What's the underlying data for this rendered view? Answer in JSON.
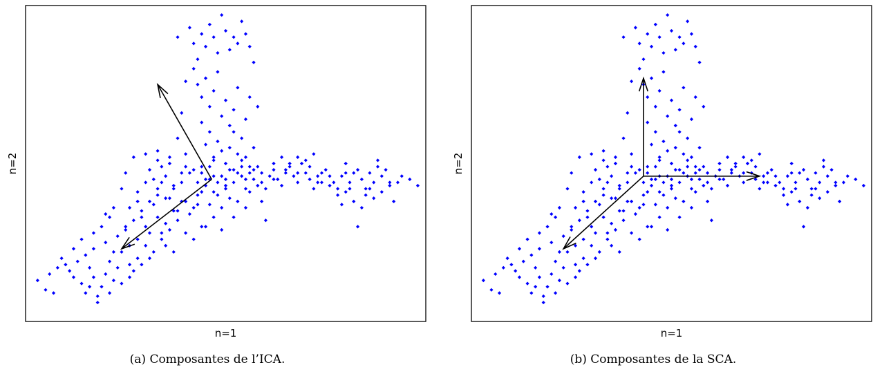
{
  "chart_data": [
    {
      "type": "scatter",
      "title": "",
      "xlabel": "n=1",
      "ylabel": "n=2",
      "caption": "(a)  Composantes de l’ICA.",
      "point_color": "#0000ff",
      "arrow_color": "#000000",
      "grid": false,
      "legend": "none",
      "xlim": [
        0,
        100
      ],
      "ylim": [
        0,
        100
      ],
      "points": [
        [
          3,
          13
        ],
        [
          6,
          15
        ],
        [
          7,
          9
        ],
        [
          9,
          20
        ],
        [
          10,
          18
        ],
        [
          11,
          16
        ],
        [
          12,
          14
        ],
        [
          13,
          19
        ],
        [
          14,
          12
        ],
        [
          15,
          21
        ],
        [
          15,
          9
        ],
        [
          16,
          17
        ],
        [
          17,
          23
        ],
        [
          17,
          14
        ],
        [
          18,
          8
        ],
        [
          19,
          11
        ],
        [
          20,
          15
        ],
        [
          20,
          25
        ],
        [
          21,
          19
        ],
        [
          22,
          13
        ],
        [
          23,
          17
        ],
        [
          23,
          27
        ],
        [
          24,
          22
        ],
        [
          25,
          29
        ],
        [
          26,
          24
        ],
        [
          26,
          18
        ],
        [
          27,
          32
        ],
        [
          28,
          26
        ],
        [
          28,
          20
        ],
        [
          29,
          35
        ],
        [
          30,
          30
        ],
        [
          30,
          24
        ],
        [
          31,
          28
        ],
        [
          32,
          37
        ],
        [
          32,
          22
        ],
        [
          33,
          33
        ],
        [
          34,
          26
        ],
        [
          35,
          39
        ],
        [
          35,
          31
        ],
        [
          36,
          29
        ],
        [
          37,
          42
        ],
        [
          38,
          35
        ],
        [
          39,
          44
        ],
        [
          40,
          38
        ],
        [
          41,
          47
        ],
        [
          42,
          36
        ],
        [
          43,
          40
        ],
        [
          44,
          49
        ],
        [
          45,
          43
        ],
        [
          46,
          45
        ],
        [
          47,
          41
        ],
        [
          49,
          46
        ],
        [
          50,
          43
        ],
        [
          51,
          48
        ],
        [
          52,
          44
        ],
        [
          54,
          46
        ],
        [
          55,
          42
        ],
        [
          56,
          47
        ],
        [
          57,
          45
        ],
        [
          58,
          49
        ],
        [
          59,
          44
        ],
        [
          60,
          42
        ],
        [
          61,
          46
        ],
        [
          62,
          48
        ],
        [
          63,
          45
        ],
        [
          64,
          43
        ],
        [
          65,
          47
        ],
        [
          66,
          49
        ],
        [
          67,
          46
        ],
        [
          68,
          44
        ],
        [
          69,
          50
        ],
        [
          70,
          47
        ],
        [
          71,
          45
        ],
        [
          72,
          42
        ],
        [
          73,
          46
        ],
        [
          74,
          44
        ],
        [
          77,
          44
        ],
        [
          78,
          42
        ],
        [
          79,
          46
        ],
        [
          80,
          41
        ],
        [
          81,
          44
        ],
        [
          82,
          47
        ],
        [
          83,
          48
        ],
        [
          84,
          45
        ],
        [
          85,
          42
        ],
        [
          86,
          47
        ],
        [
          87,
          44
        ],
        [
          88,
          51
        ],
        [
          89,
          46
        ],
        [
          90,
          48
        ],
        [
          91,
          44
        ],
        [
          93,
          44
        ],
        [
          96,
          45
        ],
        [
          41,
          93
        ],
        [
          42,
          88
        ],
        [
          43,
          83
        ],
        [
          44,
          91
        ],
        [
          45,
          87
        ],
        [
          46,
          94
        ],
        [
          47,
          90
        ],
        [
          48,
          85
        ],
        [
          49,
          97
        ],
        [
          50,
          92
        ],
        [
          51,
          86
        ],
        [
          52,
          90
        ],
        [
          53,
          88
        ],
        [
          54,
          95
        ],
        [
          55,
          91
        ],
        [
          56,
          87
        ],
        [
          42,
          80
        ],
        [
          43,
          75
        ],
        [
          44,
          71
        ],
        [
          45,
          77
        ],
        [
          46,
          68
        ],
        [
          47,
          73
        ],
        [
          48,
          79
        ],
        [
          49,
          65
        ],
        [
          50,
          70
        ],
        [
          51,
          62
        ],
        [
          52,
          67
        ],
        [
          53,
          74
        ],
        [
          54,
          58
        ],
        [
          44,
          63
        ],
        [
          45,
          56
        ],
        [
          46,
          60
        ],
        [
          47,
          52
        ],
        [
          48,
          57
        ],
        [
          49,
          54
        ],
        [
          50,
          50
        ],
        [
          51,
          55
        ],
        [
          52,
          60
        ],
        [
          53,
          53
        ],
        [
          54,
          49
        ],
        [
          55,
          64
        ],
        [
          56,
          71
        ],
        [
          57,
          55
        ],
        [
          45,
          45
        ],
        [
          46,
          49
        ],
        [
          47,
          51
        ],
        [
          48,
          40
        ],
        [
          49,
          36
        ],
        [
          50,
          42
        ],
        [
          51,
          39
        ],
        [
          52,
          33
        ],
        [
          53,
          38
        ],
        [
          55,
          36
        ],
        [
          56,
          41
        ],
        [
          58,
          43
        ],
        [
          59,
          38
        ],
        [
          60,
          32
        ],
        [
          42,
          48
        ],
        [
          43,
          44
        ],
        [
          44,
          41
        ],
        [
          40,
          53
        ],
        [
          39,
          47
        ],
        [
          38,
          58
        ],
        [
          37,
          43
        ],
        [
          36,
          50
        ],
        [
          35,
          46
        ],
        [
          33,
          54
        ],
        [
          34,
          49
        ],
        [
          32,
          45
        ],
        [
          37,
          35
        ],
        [
          39,
          38
        ],
        [
          41,
          34
        ],
        [
          43,
          37
        ],
        [
          44,
          30
        ],
        [
          33,
          40
        ],
        [
          30,
          44
        ],
        [
          28,
          38
        ],
        [
          29,
          33
        ],
        [
          58,
          68
        ],
        [
          57,
          82
        ],
        [
          38,
          90
        ],
        [
          40,
          76
        ],
        [
          39,
          66
        ],
        [
          55,
          52
        ],
        [
          62,
          50
        ],
        [
          64,
          52
        ],
        [
          66,
          50
        ],
        [
          68,
          52
        ],
        [
          70,
          51
        ],
        [
          72,
          53
        ],
        [
          74,
          47
        ],
        [
          75,
          48
        ],
        [
          76,
          43
        ],
        [
          78,
          40
        ],
        [
          79,
          37
        ],
        [
          80,
          50
        ],
        [
          81,
          42
        ],
        [
          82,
          38
        ],
        [
          83,
          30
        ],
        [
          84,
          36
        ],
        [
          85,
          40
        ],
        [
          86,
          42
        ],
        [
          87,
          39
        ],
        [
          88,
          49
        ],
        [
          89,
          41
        ],
        [
          91,
          43
        ],
        [
          92,
          38
        ],
        [
          94,
          46
        ],
        [
          98,
          43
        ],
        [
          25,
          47
        ],
        [
          27,
          52
        ],
        [
          30,
          53
        ],
        [
          33,
          51
        ],
        [
          36,
          52
        ],
        [
          40,
          49
        ],
        [
          44,
          47
        ],
        [
          47,
          46
        ],
        [
          50,
          45
        ],
        [
          53,
          47
        ],
        [
          56,
          49
        ],
        [
          59,
          47
        ],
        [
          62,
          45
        ],
        [
          65,
          48
        ],
        [
          68,
          47
        ],
        [
          71,
          49
        ],
        [
          73,
          44
        ],
        [
          76,
          46
        ],
        [
          80,
          47
        ],
        [
          25,
          30
        ],
        [
          22,
          36
        ],
        [
          20,
          34
        ],
        [
          24,
          42
        ],
        [
          31,
          48
        ],
        [
          34,
          44
        ],
        [
          36,
          39
        ],
        [
          38,
          32
        ],
        [
          40,
          28
        ],
        [
          42,
          26
        ],
        [
          35,
          24
        ],
        [
          37,
          22
        ],
        [
          34,
          28
        ],
        [
          31,
          20
        ],
        [
          29,
          18
        ],
        [
          27,
          16
        ],
        [
          12,
          23
        ],
        [
          14,
          26
        ],
        [
          17,
          28
        ],
        [
          19,
          30
        ],
        [
          21,
          33
        ],
        [
          8,
          17
        ],
        [
          5,
          10
        ],
        [
          16,
          11
        ],
        [
          18,
          6
        ],
        [
          21,
          9
        ],
        [
          24,
          12
        ],
        [
          26,
          14
        ],
        [
          22,
          22
        ],
        [
          26,
          36
        ],
        [
          28,
          41
        ],
        [
          31,
          38
        ],
        [
          33,
          42
        ],
        [
          45,
          30
        ],
        [
          47,
          33
        ],
        [
          49,
          29
        ],
        [
          46,
          37
        ],
        [
          48,
          44
        ],
        [
          52,
          48
        ],
        [
          54,
          51
        ],
        [
          55,
          45
        ],
        [
          57,
          48
        ]
      ],
      "arrows": [
        {
          "from": [
            46.5,
            45
          ],
          "to": [
            33,
            75
          ]
        },
        {
          "from": [
            46.5,
            45
          ],
          "to": [
            24,
            23
          ]
        }
      ]
    },
    {
      "type": "scatter",
      "title": "",
      "xlabel": "n=1",
      "ylabel": "n=2",
      "caption": "(b)  Composantes de la SCA.",
      "point_color": "#0000ff",
      "arrow_color": "#000000",
      "grid": false,
      "legend": "none",
      "xlim": [
        0,
        100
      ],
      "ylim": [
        0,
        100
      ],
      "points": "same_as_panel_a",
      "arrows": [
        {
          "from": [
            43,
            46
          ],
          "to": [
            43,
            77
          ]
        },
        {
          "from": [
            43,
            46
          ],
          "to": [
            72,
            46
          ]
        },
        {
          "from": [
            43,
            46
          ],
          "to": [
            23,
            23
          ]
        }
      ]
    }
  ]
}
